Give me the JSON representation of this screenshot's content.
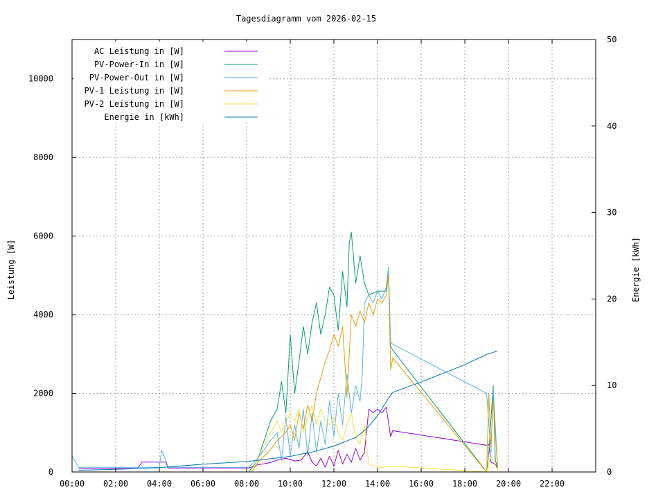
{
  "chart_data": {
    "type": "line",
    "title": "Tagesdiagramm vom 2026-02-15",
    "ylabel": "Leistung [W]",
    "y2label": "Energie [kWh]",
    "xlim": [
      0,
      24
    ],
    "ylim": [
      0,
      11000
    ],
    "y2lim": [
      0,
      50
    ],
    "grid": true,
    "legend_position": "top-left",
    "x_ticks": [
      {
        "v": 0,
        "label": "00:00"
      },
      {
        "v": 2,
        "label": "02:00"
      },
      {
        "v": 4,
        "label": "04:00"
      },
      {
        "v": 6,
        "label": "06:00"
      },
      {
        "v": 8,
        "label": "08:00"
      },
      {
        "v": 10,
        "label": "10:00"
      },
      {
        "v": 12,
        "label": "12:00"
      },
      {
        "v": 14,
        "label": "14:00"
      },
      {
        "v": 16,
        "label": "16:00"
      },
      {
        "v": 18,
        "label": "18:00"
      },
      {
        "v": 20,
        "label": "20:00"
      },
      {
        "v": 22,
        "label": "22:00"
      }
    ],
    "y_ticks": [
      {
        "v": 0,
        "label": "0"
      },
      {
        "v": 2000,
        "label": "2000"
      },
      {
        "v": 4000,
        "label": "4000"
      },
      {
        "v": 6000,
        "label": "6000"
      },
      {
        "v": 8000,
        "label": "8000"
      },
      {
        "v": 10000,
        "label": "10000"
      }
    ],
    "y2_ticks": [
      {
        "v": 0,
        "label": "0"
      },
      {
        "v": 10,
        "label": "10"
      },
      {
        "v": 20,
        "label": "20"
      },
      {
        "v": 30,
        "label": "30"
      },
      {
        "v": 40,
        "label": "40"
      },
      {
        "v": 50,
        "label": "50"
      }
    ],
    "series": [
      {
        "name": "AC Leistung in [W]",
        "color": "#9400d3",
        "axis": "y1",
        "points": [
          [
            0.3,
            90
          ],
          [
            3.0,
            90
          ],
          [
            3.2,
            250
          ],
          [
            4.3,
            250
          ],
          [
            4.4,
            100
          ],
          [
            8.1,
            100
          ],
          [
            8.5,
            180
          ],
          [
            9.0,
            230
          ],
          [
            9.4,
            300
          ],
          [
            9.8,
            350
          ],
          [
            10.2,
            280
          ],
          [
            10.5,
            300
          ],
          [
            10.8,
            520
          ],
          [
            11.0,
            250
          ],
          [
            11.2,
            150
          ],
          [
            11.4,
            350
          ],
          [
            11.6,
            120
          ],
          [
            11.8,
            400
          ],
          [
            12.0,
            150
          ],
          [
            12.2,
            550
          ],
          [
            12.4,
            200
          ],
          [
            12.6,
            450
          ],
          [
            12.8,
            250
          ],
          [
            13.0,
            600
          ],
          [
            13.2,
            300
          ],
          [
            13.4,
            500
          ],
          [
            13.6,
            1600
          ],
          [
            13.8,
            1500
          ],
          [
            14.0,
            1600
          ],
          [
            14.2,
            1500
          ],
          [
            14.4,
            1650
          ],
          [
            14.6,
            900
          ],
          [
            14.7,
            1050
          ],
          [
            19.0,
            680
          ],
          [
            19.1,
            700
          ],
          [
            19.2,
            250
          ],
          [
            19.4,
            200
          ],
          [
            19.5,
            100
          ]
        ]
      },
      {
        "name": "PV-Power-In in [W]",
        "color": "#009e73",
        "axis": "y1",
        "points": [
          [
            8.1,
            0
          ],
          [
            8.5,
            300
          ],
          [
            8.8,
            800
          ],
          [
            9.1,
            1300
          ],
          [
            9.4,
            1600
          ],
          [
            9.6,
            2300
          ],
          [
            9.8,
            1500
          ],
          [
            10.0,
            3500
          ],
          [
            10.2,
            2000
          ],
          [
            10.4,
            2800
          ],
          [
            10.6,
            3700
          ],
          [
            10.8,
            3000
          ],
          [
            11.0,
            3800
          ],
          [
            11.2,
            4300
          ],
          [
            11.4,
            3500
          ],
          [
            11.6,
            4000
          ],
          [
            11.8,
            4700
          ],
          [
            12.0,
            4500
          ],
          [
            12.2,
            3600
          ],
          [
            12.4,
            5100
          ],
          [
            12.6,
            4200
          ],
          [
            12.7,
            5800
          ],
          [
            12.8,
            6100
          ],
          [
            13.0,
            4800
          ],
          [
            13.2,
            5500
          ],
          [
            13.4,
            4800
          ],
          [
            13.6,
            4500
          ],
          [
            13.8,
            4550
          ],
          [
            14.0,
            4600
          ],
          [
            14.2,
            4600
          ],
          [
            14.4,
            4600
          ],
          [
            14.5,
            5200
          ],
          [
            14.6,
            3200
          ],
          [
            14.7,
            3100
          ],
          [
            19.0,
            0
          ],
          [
            19.1,
            500
          ],
          [
            19.3,
            2200
          ],
          [
            19.4,
            300
          ],
          [
            19.5,
            100
          ]
        ]
      },
      {
        "name": "PV-Power-Out in [W]",
        "color": "#56b4e9",
        "axis": "y1",
        "points": [
          [
            0.0,
            400
          ],
          [
            0.3,
            120
          ],
          [
            4.0,
            120
          ],
          [
            4.1,
            550
          ],
          [
            4.3,
            300
          ],
          [
            4.4,
            120
          ],
          [
            8.1,
            120
          ],
          [
            8.6,
            400
          ],
          [
            9.1,
            800
          ],
          [
            9.4,
            1000
          ],
          [
            9.6,
            300
          ],
          [
            9.8,
            1400
          ],
          [
            10.0,
            400
          ],
          [
            10.2,
            1200
          ],
          [
            10.4,
            600
          ],
          [
            10.6,
            1600
          ],
          [
            10.8,
            400
          ],
          [
            11.0,
            1500
          ],
          [
            11.2,
            500
          ],
          [
            11.4,
            1300
          ],
          [
            11.6,
            700
          ],
          [
            11.8,
            1800
          ],
          [
            12.0,
            900
          ],
          [
            12.2,
            2000
          ],
          [
            12.4,
            1200
          ],
          [
            12.6,
            2500
          ],
          [
            12.8,
            1500
          ],
          [
            13.0,
            2200
          ],
          [
            13.2,
            1800
          ],
          [
            13.3,
            2500
          ],
          [
            13.4,
            4300
          ],
          [
            13.6,
            4500
          ],
          [
            13.8,
            4300
          ],
          [
            14.0,
            4600
          ],
          [
            14.2,
            4400
          ],
          [
            14.4,
            4700
          ],
          [
            14.5,
            5200
          ],
          [
            14.6,
            3300
          ],
          [
            14.7,
            3250
          ],
          [
            19.0,
            2000
          ],
          [
            19.2,
            500
          ],
          [
            19.3,
            2100
          ],
          [
            19.5,
            150
          ]
        ]
      },
      {
        "name": "PV-1 Leistung in [W]",
        "color": "#e69f00",
        "axis": "y1",
        "points": [
          [
            8.2,
            0
          ],
          [
            8.6,
            300
          ],
          [
            9.0,
            500
          ],
          [
            9.4,
            800
          ],
          [
            9.8,
            1000
          ],
          [
            10.0,
            1200
          ],
          [
            10.2,
            800
          ],
          [
            10.4,
            1500
          ],
          [
            10.6,
            1100
          ],
          [
            10.8,
            1700
          ],
          [
            11.0,
            1300
          ],
          [
            11.2,
            2000
          ],
          [
            11.4,
            2400
          ],
          [
            11.6,
            2800
          ],
          [
            11.8,
            3100
          ],
          [
            12.0,
            3500
          ],
          [
            12.2,
            3200
          ],
          [
            12.4,
            3700
          ],
          [
            12.6,
            1900
          ],
          [
            12.8,
            4000
          ],
          [
            13.0,
            3700
          ],
          [
            13.2,
            4100
          ],
          [
            13.4,
            3800
          ],
          [
            13.6,
            4300
          ],
          [
            13.8,
            4000
          ],
          [
            14.0,
            4400
          ],
          [
            14.2,
            4300
          ],
          [
            14.4,
            4500
          ],
          [
            14.5,
            5000
          ],
          [
            14.6,
            2600
          ],
          [
            14.7,
            2900
          ],
          [
            19.0,
            0
          ],
          [
            19.1,
            2000
          ],
          [
            19.2,
            600
          ],
          [
            19.3,
            1800
          ],
          [
            19.5,
            100
          ]
        ]
      },
      {
        "name": "PV-2 Leistung in [W]",
        "color": "#f0e442",
        "axis": "y1",
        "points": [
          [
            8.2,
            0
          ],
          [
            8.6,
            400
          ],
          [
            9.0,
            900
          ],
          [
            9.4,
            1300
          ],
          [
            9.6,
            1000
          ],
          [
            10.0,
            1500
          ],
          [
            10.2,
            1300
          ],
          [
            10.4,
            1600
          ],
          [
            10.6,
            1000
          ],
          [
            10.8,
            1400
          ],
          [
            11.0,
            1700
          ],
          [
            11.2,
            1200
          ],
          [
            11.4,
            1600
          ],
          [
            11.6,
            1300
          ],
          [
            11.8,
            1200
          ],
          [
            12.0,
            1400
          ],
          [
            12.2,
            1000
          ],
          [
            12.4,
            800
          ],
          [
            12.6,
            1200
          ],
          [
            12.8,
            1500
          ],
          [
            13.0,
            900
          ],
          [
            13.2,
            700
          ],
          [
            13.4,
            1200
          ],
          [
            13.6,
            200
          ],
          [
            14.0,
            100
          ],
          [
            14.6,
            150
          ],
          [
            16.0,
            100
          ],
          [
            19.0,
            0
          ],
          [
            19.2,
            400
          ],
          [
            19.5,
            50
          ]
        ]
      },
      {
        "name": "Energie in [kWh]",
        "color": "#0072b2",
        "axis": "y2",
        "points": [
          [
            0.3,
            0.2
          ],
          [
            2.0,
            0.3
          ],
          [
            4.0,
            0.5
          ],
          [
            6.0,
            0.9
          ],
          [
            8.0,
            1.2
          ],
          [
            9.0,
            1.5
          ],
          [
            10.0,
            1.8
          ],
          [
            11.0,
            2.3
          ],
          [
            12.0,
            3.0
          ],
          [
            13.0,
            4.0
          ],
          [
            13.5,
            5.0
          ],
          [
            14.0,
            6.5
          ],
          [
            14.5,
            8.5
          ],
          [
            14.7,
            9.2
          ],
          [
            16.0,
            10.4
          ],
          [
            17.0,
            11.4
          ],
          [
            18.0,
            12.4
          ],
          [
            19.0,
            13.6
          ],
          [
            19.5,
            14.0
          ]
        ]
      }
    ]
  }
}
